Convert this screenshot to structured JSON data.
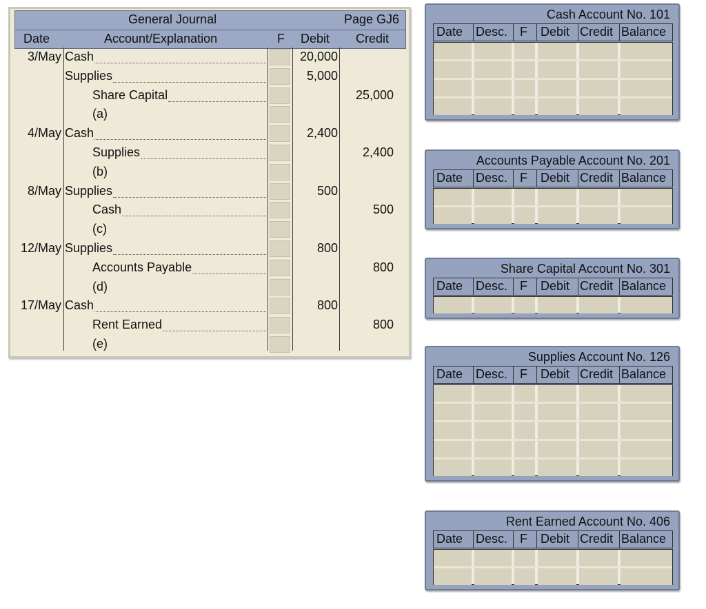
{
  "journal": {
    "title": "General Journal",
    "page": "Page GJ6",
    "headers": {
      "date": "Date",
      "account": "Account/Explanation",
      "f": "F",
      "debit": "Debit",
      "credit": "Credit"
    },
    "rows": [
      {
        "date": "3/May",
        "account": "Cash",
        "indent": false,
        "debit": "20,000",
        "credit": ""
      },
      {
        "date": "",
        "account": "Supplies",
        "indent": false,
        "debit": "5,000",
        "credit": ""
      },
      {
        "date": "",
        "account": "Share Capital",
        "indent": true,
        "debit": "",
        "credit": "25,000"
      },
      {
        "date": "",
        "account": "(a)",
        "indent": true,
        "explanation": true,
        "debit": "",
        "credit": ""
      },
      {
        "date": "4/May",
        "account": "Cash",
        "indent": false,
        "debit": "2,400",
        "credit": ""
      },
      {
        "date": "",
        "account": "Supplies",
        "indent": true,
        "debit": "",
        "credit": "2,400"
      },
      {
        "date": "",
        "account": "(b)",
        "indent": true,
        "explanation": true,
        "debit": "",
        "credit": ""
      },
      {
        "date": "8/May",
        "account": "Supplies",
        "indent": false,
        "debit": "500",
        "credit": ""
      },
      {
        "date": "",
        "account": "Cash",
        "indent": true,
        "debit": "",
        "credit": "500"
      },
      {
        "date": "",
        "account": "(c)",
        "indent": true,
        "explanation": true,
        "debit": "",
        "credit": ""
      },
      {
        "date": "12/May",
        "account": "Supplies",
        "indent": false,
        "debit": "800",
        "credit": ""
      },
      {
        "date": "",
        "account": "Accounts Payable",
        "indent": true,
        "debit": "",
        "credit": "800"
      },
      {
        "date": "",
        "account": "(d)",
        "indent": true,
        "explanation": true,
        "debit": "",
        "credit": ""
      },
      {
        "date": "17/May",
        "account": "Cash",
        "indent": false,
        "debit": "800",
        "credit": ""
      },
      {
        "date": "",
        "account": "Rent Earned",
        "indent": true,
        "debit": "",
        "credit": "800"
      },
      {
        "date": "",
        "account": "(e)",
        "indent": true,
        "explanation": true,
        "debit": "",
        "credit": ""
      }
    ]
  },
  "ledger_headers": {
    "date": "Date",
    "desc": "Desc.",
    "f": "F",
    "debit": "Debit",
    "credit": "Credit",
    "balance": "Balance"
  },
  "ledgers": [
    {
      "title": "Cash Account No. 101",
      "rows": 4
    },
    {
      "title": "Accounts Payable Account No. 201",
      "rows": 2
    },
    {
      "title": "Share Capital Account No. 301",
      "rows": 1
    },
    {
      "title": "Supplies Account No. 126",
      "rows": 5
    },
    {
      "title": "Rent Earned Account No. 406",
      "rows": 2
    }
  ],
  "colors": {
    "header_blue": "#9ba9c4",
    "journal_bg": "#efead7",
    "cell_tan": "#d6d2bd"
  }
}
